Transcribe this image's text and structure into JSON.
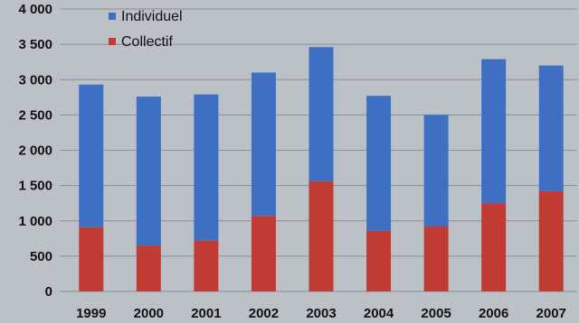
{
  "chart_data": {
    "type": "bar",
    "stacked": true,
    "title": "",
    "xlabel": "",
    "ylabel": "",
    "categories": [
      "1999",
      "2000",
      "2001",
      "2002",
      "2003",
      "2004",
      "2005",
      "2006",
      "2007"
    ],
    "series": [
      {
        "name": "Collectif",
        "color": "#c03b33",
        "values": [
          910,
          650,
          720,
          1070,
          1560,
          860,
          920,
          1250,
          1420
        ]
      },
      {
        "name": "Individuel",
        "color": "#3f6fc3",
        "values": [
          2020,
          2110,
          2070,
          2030,
          1900,
          1910,
          1580,
          2040,
          1780
        ]
      }
    ],
    "ylim": [
      0,
      4000
    ],
    "yticks": [
      "0",
      "500",
      "1 000",
      "1 500",
      "2 000",
      "2 500",
      "3 000",
      "3 500",
      "4 000"
    ],
    "grid": true,
    "legend_position": "top-left",
    "legend_order": [
      "Individuel",
      "Collectif"
    ],
    "background_color": "#bcc1c7",
    "gridline_color": "#8a8f96"
  }
}
